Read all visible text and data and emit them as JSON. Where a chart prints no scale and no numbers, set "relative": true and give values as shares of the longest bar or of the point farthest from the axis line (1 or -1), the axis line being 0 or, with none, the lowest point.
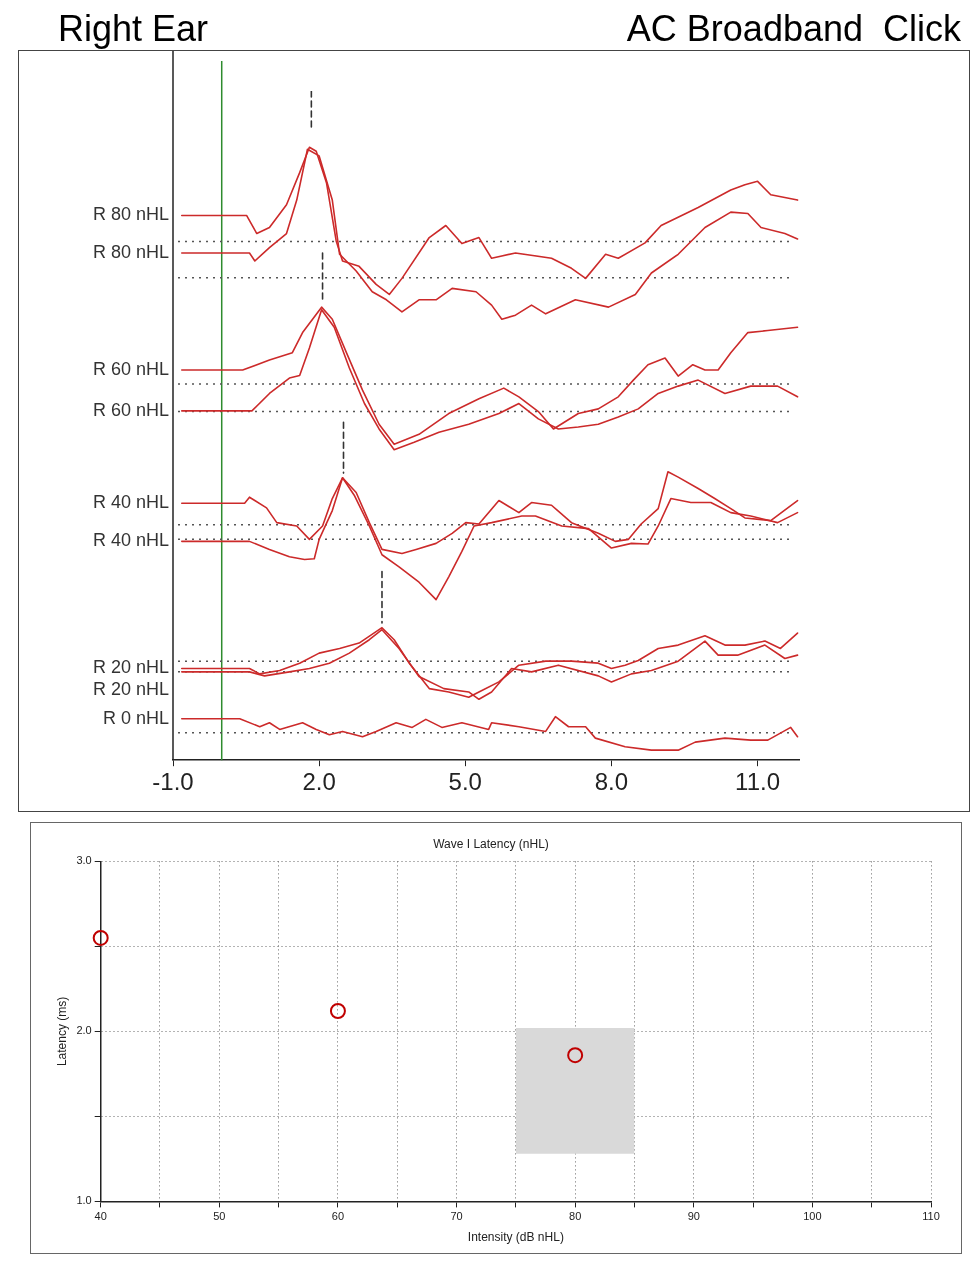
{
  "chart_data": [
    {
      "type": "line",
      "title": "Right Ear",
      "subtitle": "AC Broadband  Click",
      "relative": true,
      "marker": "none",
      "xlim": [
        -1,
        11.85
      ],
      "xticks": [
        {
          "value": -1,
          "label": "-1.0"
        },
        {
          "value": 2,
          "label": "2.0"
        },
        {
          "value": 5,
          "label": "5.0"
        },
        {
          "value": 8,
          "label": "8.0"
        },
        {
          "value": 11,
          "label": "11.0"
        }
      ],
      "ref_lines": [
        {
          "axis": "x",
          "value": 0,
          "color": "#2e8b2e",
          "line_style": "solid"
        },
        {
          "axis": "y",
          "value": 0.775,
          "color": "#555555",
          "line_style": "dotted"
        },
        {
          "axis": "y",
          "value": 0.721,
          "color": "#555555",
          "line_style": "dotted"
        },
        {
          "axis": "y",
          "value": 0.562,
          "color": "#555555",
          "line_style": "dotted"
        },
        {
          "axis": "y",
          "value": 0.521,
          "color": "#555555",
          "line_style": "dotted"
        },
        {
          "axis": "y",
          "value": 0.352,
          "color": "#555555",
          "line_style": "dotted"
        },
        {
          "axis": "y",
          "value": 0.33,
          "color": "#555555",
          "line_style": "dotted"
        },
        {
          "axis": "y",
          "value": 0.148,
          "color": "#555555",
          "line_style": "dotted"
        },
        {
          "axis": "y",
          "value": 0.132,
          "color": "#555555",
          "line_style": "dotted"
        },
        {
          "axis": "y",
          "value": 0.041,
          "color": "#555555",
          "line_style": "dotted"
        }
      ],
      "series": [
        {
          "name": "R 80 nHL",
          "color": "#cc2a2a",
          "x": [
            -0.82,
            0.51,
            0.72,
            0.98,
            1.33,
            1.6,
            1.8,
            1.94,
            2.15,
            2.35,
            2.48,
            2.82,
            3.17,
            3.44,
            3.7,
            4.26,
            4.6,
            4.93,
            5.28,
            5.54,
            6.03,
            6.77,
            7.18,
            7.47,
            7.88,
            8.14,
            8.69,
            9.02,
            9.78,
            10.45,
            10.74,
            11.0,
            11.27,
            11.82
          ],
          "values": [
            0.814,
            0.814,
            0.787,
            0.796,
            0.83,
            0.878,
            0.916,
            0.91,
            0.863,
            0.776,
            0.746,
            0.738,
            0.711,
            0.696,
            0.72,
            0.781,
            0.799,
            0.772,
            0.781,
            0.75,
            0.758,
            0.75,
            0.735,
            0.72,
            0.756,
            0.75,
            0.773,
            0.799,
            0.826,
            0.852,
            0.86,
            0.865,
            0.845,
            0.837
          ]
        },
        {
          "name": "R 80 nHL",
          "color": "#cc2a2a",
          "x": [
            -0.82,
            0.57,
            0.68,
            0.98,
            1.33,
            1.54,
            1.76,
            2.0,
            2.27,
            2.42,
            2.76,
            3.09,
            3.38,
            3.7,
            4.05,
            4.4,
            4.73,
            5.22,
            5.54,
            5.75,
            6.03,
            6.36,
            6.65,
            7.26,
            7.94,
            8.49,
            8.82,
            9.37,
            9.92,
            10.45,
            10.8,
            11.07,
            11.56,
            11.82
          ],
          "values": [
            0.758,
            0.758,
            0.746,
            0.766,
            0.787,
            0.837,
            0.913,
            0.903,
            0.837,
            0.756,
            0.731,
            0.7,
            0.688,
            0.67,
            0.688,
            0.688,
            0.705,
            0.7,
            0.68,
            0.659,
            0.665,
            0.68,
            0.667,
            0.688,
            0.677,
            0.696,
            0.728,
            0.756,
            0.796,
            0.819,
            0.817,
            0.796,
            0.787,
            0.779
          ]
        },
        {
          "name": "R 60 nHL",
          "color": "#cc2a2a",
          "x": [
            -0.82,
            0.43,
            0.98,
            1.45,
            1.66,
            2.05,
            2.27,
            2.56,
            2.89,
            3.23,
            3.54,
            4.05,
            4.66,
            5.28,
            5.79,
            6.1,
            6.5,
            6.81,
            7.32,
            7.73,
            8.14,
            8.45,
            8.75,
            9.1,
            9.37,
            9.67,
            9.92,
            10.19,
            10.45,
            10.8,
            11.21,
            11.82
          ],
          "values": [
            0.583,
            0.583,
            0.598,
            0.609,
            0.639,
            0.677,
            0.659,
            0.609,
            0.553,
            0.502,
            0.472,
            0.487,
            0.518,
            0.54,
            0.556,
            0.543,
            0.521,
            0.495,
            0.518,
            0.525,
            0.543,
            0.568,
            0.591,
            0.601,
            0.574,
            0.591,
            0.583,
            0.583,
            0.609,
            0.639,
            0.642,
            0.647
          ]
        },
        {
          "name": "R 60 nHL",
          "color": "#cc2a2a",
          "x": [
            -0.82,
            0.62,
            0.98,
            1.39,
            1.6,
            1.8,
            2.05,
            2.31,
            2.62,
            2.93,
            3.23,
            3.54,
            3.95,
            4.46,
            5.07,
            5.69,
            6.1,
            6.5,
            6.91,
            7.32,
            7.73,
            8.14,
            8.55,
            8.96,
            9.37,
            9.78,
            10.33,
            10.86,
            11.41,
            11.82
          ],
          "values": [
            0.522,
            0.522,
            0.548,
            0.571,
            0.575,
            0.616,
            0.673,
            0.647,
            0.586,
            0.533,
            0.495,
            0.464,
            0.475,
            0.49,
            0.502,
            0.518,
            0.533,
            0.51,
            0.495,
            0.498,
            0.502,
            0.513,
            0.525,
            0.548,
            0.559,
            0.568,
            0.548,
            0.559,
            0.559,
            0.543
          ]
        },
        {
          "name": "R 40 nHL",
          "color": "#cc2a2a",
          "x": [
            -0.82,
            0.47,
            0.57,
            0.92,
            1.13,
            1.54,
            1.8,
            2.07,
            2.27,
            2.48,
            2.76,
            3.03,
            3.29,
            3.7,
            3.99,
            4.4,
            4.73,
            5.01,
            5.28,
            5.69,
            6.1,
            6.36,
            6.77,
            7.18,
            7.73,
            8.08,
            8.35,
            8.61,
            8.96,
            9.16,
            9.37,
            9.78,
            10.12,
            10.45,
            10.74,
            11.27,
            11.82
          ],
          "values": [
            0.384,
            0.384,
            0.393,
            0.377,
            0.355,
            0.35,
            0.33,
            0.35,
            0.391,
            0.422,
            0.4,
            0.355,
            0.315,
            0.309,
            0.315,
            0.324,
            0.339,
            0.355,
            0.353,
            0.388,
            0.37,
            0.385,
            0.381,
            0.355,
            0.339,
            0.327,
            0.33,
            0.353,
            0.376,
            0.431,
            0.423,
            0.406,
            0.391,
            0.376,
            0.362,
            0.358,
            0.388
          ]
        },
        {
          "name": "R 40 nHL",
          "color": "#cc2a2a",
          "x": [
            -0.82,
            0.57,
            0.98,
            1.39,
            1.7,
            1.9,
            2.0,
            2.27,
            2.48,
            2.72,
            3.03,
            3.29,
            3.64,
            4.05,
            4.4,
            4.66,
            4.93,
            5.18,
            5.54,
            6.16,
            6.44,
            6.98,
            7.53,
            8.0,
            8.41,
            8.75,
            8.96,
            9.22,
            9.63,
            10.04,
            10.45,
            10.86,
            11.41,
            11.82
          ],
          "values": [
            0.327,
            0.327,
            0.315,
            0.304,
            0.3,
            0.301,
            0.33,
            0.373,
            0.422,
            0.396,
            0.35,
            0.307,
            0.289,
            0.266,
            0.24,
            0.274,
            0.312,
            0.35,
            0.355,
            0.365,
            0.365,
            0.35,
            0.346,
            0.317,
            0.324,
            0.323,
            0.35,
            0.391,
            0.385,
            0.385,
            0.37,
            0.365,
            0.355,
            0.37
          ]
        },
        {
          "name": "R 20 nHL",
          "color": "#cc2a2a",
          "x": [
            -0.82,
            0.57,
            0.78,
            1.19,
            1.6,
            2.0,
            2.42,
            2.82,
            3.29,
            3.54,
            3.85,
            4.26,
            4.66,
            5.07,
            5.28,
            5.69,
            6.1,
            6.65,
            7.18,
            7.73,
            8.0,
            8.28,
            8.55,
            8.96,
            9.37,
            9.92,
            10.33,
            10.74,
            11.15,
            11.47,
            11.82
          ],
          "values": [
            0.137,
            0.137,
            0.129,
            0.134,
            0.145,
            0.16,
            0.167,
            0.175,
            0.198,
            0.18,
            0.145,
            0.107,
            0.102,
            0.094,
            0.102,
            0.117,
            0.142,
            0.148,
            0.148,
            0.145,
            0.137,
            0.142,
            0.149,
            0.167,
            0.172,
            0.186,
            0.172,
            0.172,
            0.178,
            0.167,
            0.19
          ]
        },
        {
          "name": "R 20 nHL",
          "color": "#cc2a2a",
          "x": [
            -0.82,
            0.57,
            0.88,
            1.39,
            1.8,
            2.21,
            2.62,
            3.03,
            3.29,
            3.64,
            4.05,
            4.56,
            5.07,
            5.28,
            5.54,
            5.95,
            6.36,
            6.91,
            7.73,
            8.0,
            8.41,
            8.82,
            9.37,
            9.92,
            10.19,
            10.59,
            11.15,
            11.56,
            11.82
          ],
          "values": [
            0.132,
            0.132,
            0.126,
            0.132,
            0.137,
            0.145,
            0.16,
            0.18,
            0.195,
            0.167,
            0.125,
            0.107,
            0.102,
            0.091,
            0.102,
            0.137,
            0.132,
            0.142,
            0.126,
            0.117,
            0.129,
            0.134,
            0.148,
            0.178,
            0.157,
            0.157,
            0.172,
            0.152,
            0.157
          ]
        },
        {
          "name": "R 0 nHL",
          "color": "#cc2a2a",
          "x": [
            -0.82,
            0.37,
            0.78,
            0.98,
            1.19,
            1.66,
            1.94,
            2.21,
            2.48,
            2.89,
            3.17,
            3.58,
            3.91,
            4.19,
            4.52,
            4.93,
            5.48,
            5.54,
            6.1,
            6.65,
            6.85,
            7.12,
            7.47,
            7.67,
            8.28,
            8.82,
            9.37,
            9.72,
            10.33,
            10.86,
            11.21,
            11.68,
            11.82
          ],
          "values": [
            0.062,
            0.062,
            0.05,
            0.056,
            0.046,
            0.056,
            0.046,
            0.038,
            0.043,
            0.035,
            0.043,
            0.056,
            0.049,
            0.061,
            0.049,
            0.056,
            0.046,
            0.056,
            0.05,
            0.043,
            0.065,
            0.05,
            0.05,
            0.033,
            0.02,
            0.015,
            0.015,
            0.027,
            0.033,
            0.03,
            0.03,
            0.049,
            0.035
          ]
        },
        {
          "color": "#333333",
          "line_style": "dashed",
          "x": [
            1.84,
            1.84
          ],
          "values": [
            1.0,
            0.944
          ]
        },
        {
          "color": "#333333",
          "line_style": "dashed",
          "x": [
            2.07,
            2.07
          ],
          "values": [
            0.758,
            0.685
          ]
        },
        {
          "color": "#333333",
          "line_style": "dashed",
          "x": [
            2.5,
            2.5
          ],
          "values": [
            0.505,
            0.429
          ]
        },
        {
          "color": "#333333",
          "line_style": "dashed",
          "x": [
            3.29,
            3.29
          ],
          "values": [
            0.282,
            0.205
          ]
        }
      ]
    },
    {
      "type": "scatter",
      "title": "Wave I Latency (nHL)",
      "xlabel": "Intensity (dB nHL)",
      "ylabel": "Latency (ms)",
      "grid": true,
      "xlim": [
        40,
        110
      ],
      "xticks": [
        40,
        {
          "value": 45,
          "label": null
        },
        50,
        {
          "value": 55,
          "label": null
        },
        60,
        {
          "value": 65,
          "label": null
        },
        70,
        {
          "value": 75,
          "label": null
        },
        80,
        {
          "value": 85,
          "label": null
        },
        90,
        {
          "value": 95,
          "label": null
        },
        100,
        {
          "value": 105,
          "label": null
        },
        110
      ],
      "ylim": [
        1,
        3
      ],
      "yticks": [
        {
          "value": 1,
          "label": "1.0"
        },
        {
          "value": 1.5,
          "label": null
        },
        {
          "value": 2,
          "label": "2.0"
        },
        {
          "value": 2.5,
          "label": null
        },
        {
          "value": 3,
          "label": "3.0"
        }
      ],
      "series": [
        {
          "type": "area",
          "color": "#d9d9d9",
          "x": [
            75,
            85
          ],
          "values": [
            null,
            null
          ],
          "lower": [
            1.28,
            1.28
          ],
          "upper": [
            2.02,
            2.02
          ]
        },
        {
          "type": "scatter",
          "marker": "circle",
          "color": "#c00000",
          "x": [
            40,
            60,
            80
          ],
          "values": [
            2.55,
            2.12,
            1.86
          ]
        }
      ]
    }
  ]
}
